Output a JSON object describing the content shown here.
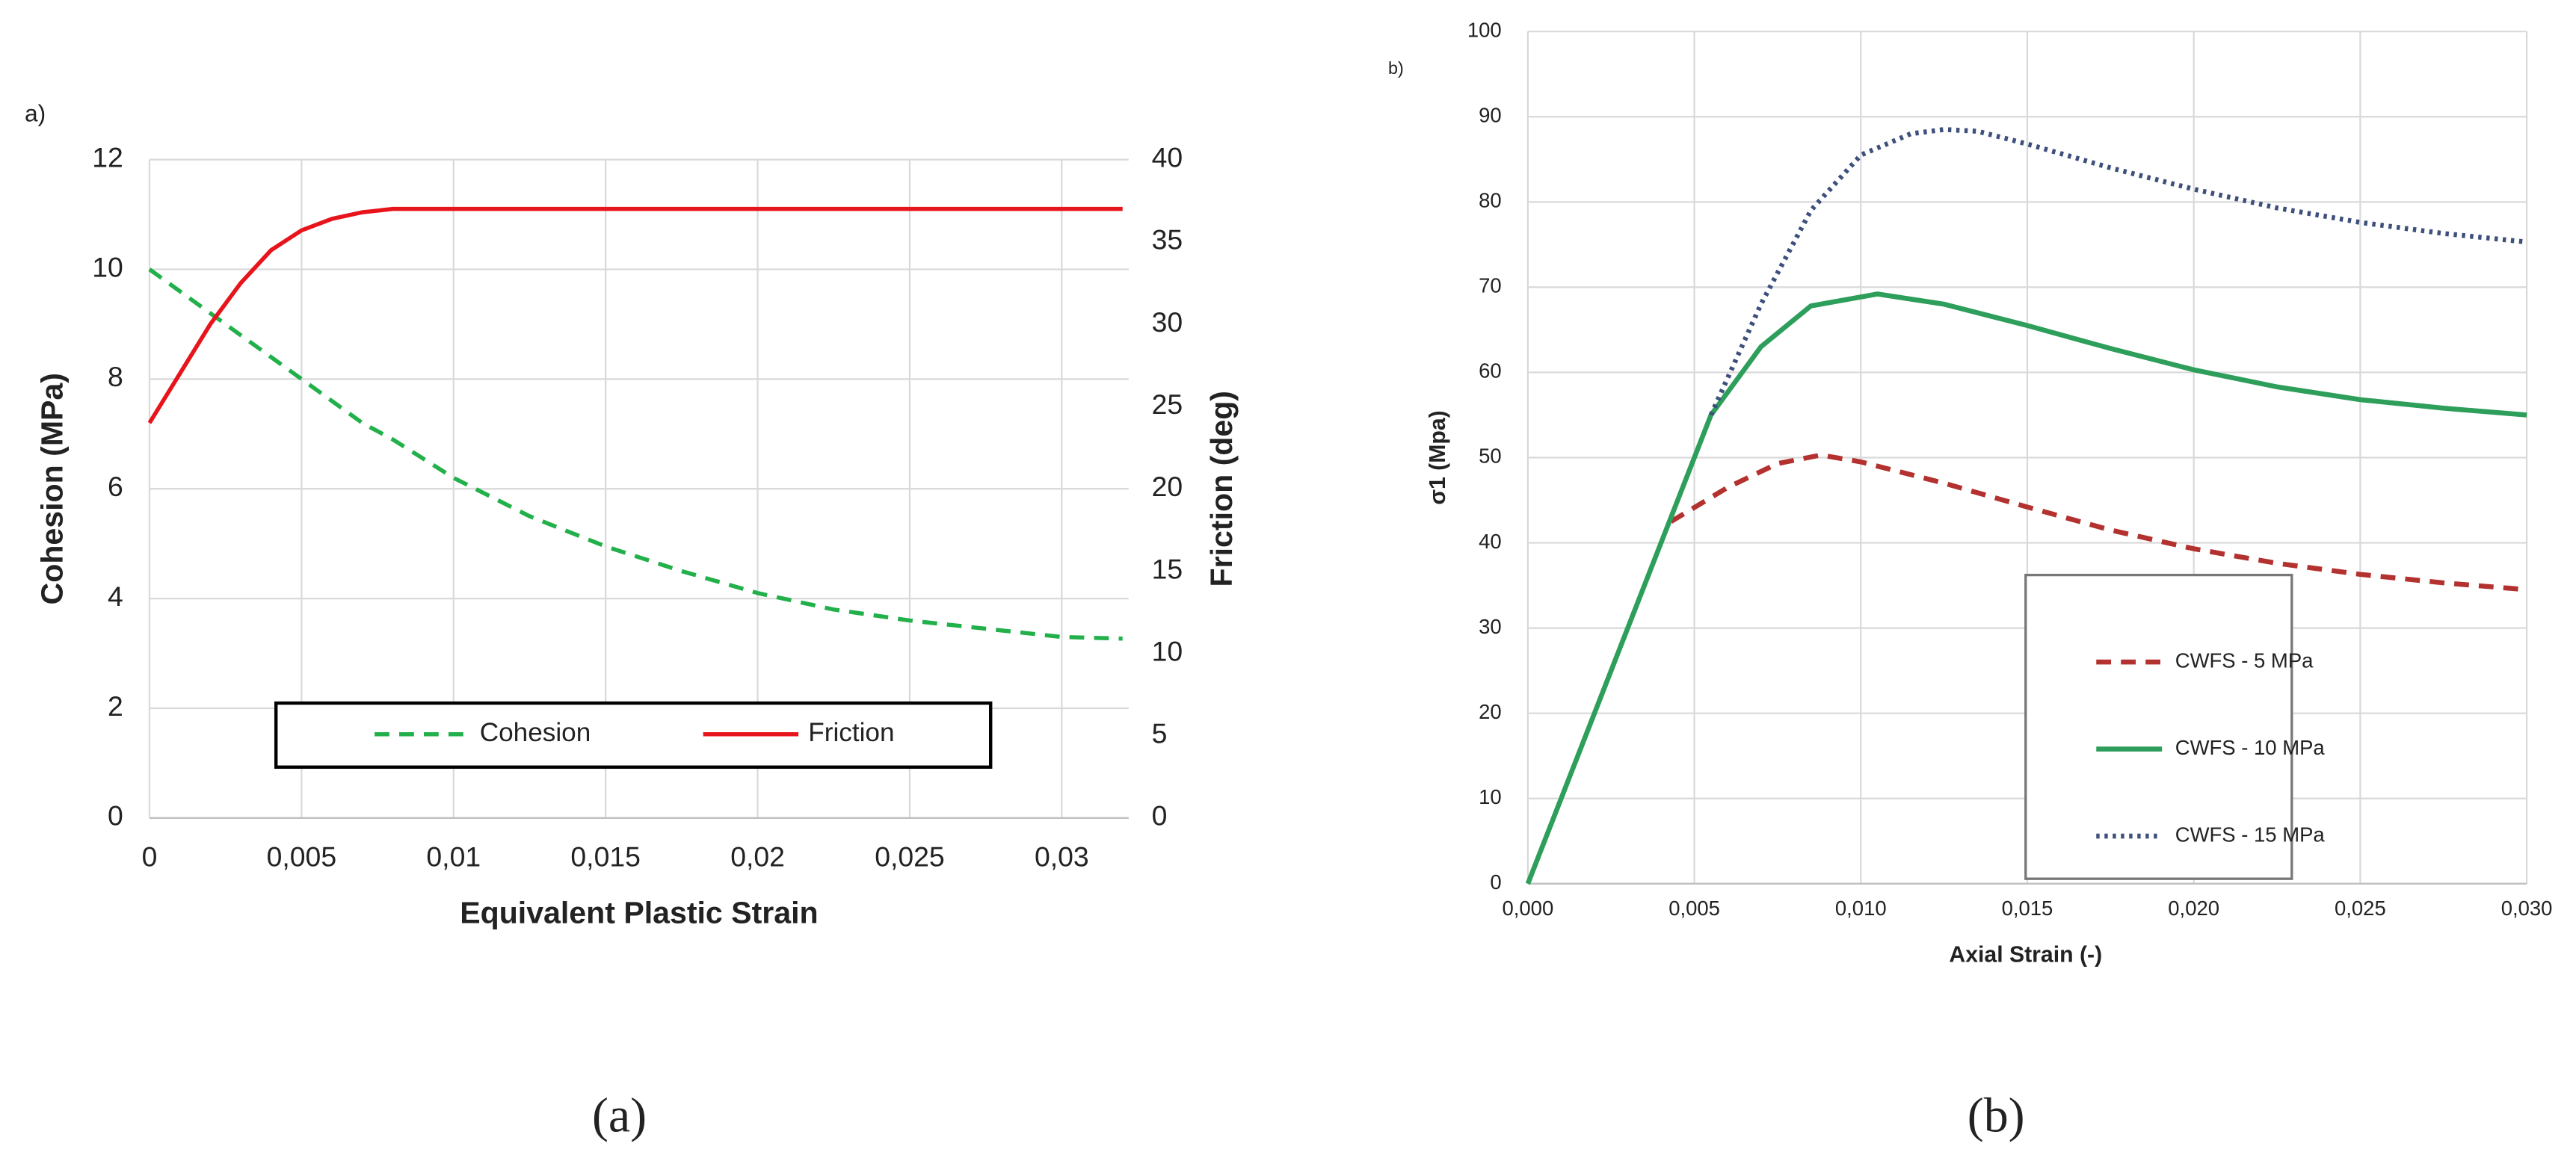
{
  "chart_data": [
    {
      "type": "line",
      "panel_label": "a)",
      "caption": "(a)",
      "xlabel": "Equivalent Plastic  Strain",
      "ylabel": "Cohesion (MPa)",
      "y2label": "Friction (deg)",
      "xlim": [
        0,
        0.0322
      ],
      "ylim": [
        0,
        12
      ],
      "y2lim": [
        0,
        40
      ],
      "xticks": [
        0,
        {
          "value": 0.005,
          "label": "0,005"
        },
        {
          "value": 0.01,
          "label": "0,01"
        },
        {
          "value": 0.015,
          "label": "0,015"
        },
        {
          "value": 0.02,
          "label": "0,02"
        },
        {
          "value": 0.025,
          "label": "0,025"
        },
        {
          "value": 0.03,
          "label": "0,03"
        }
      ],
      "yticks": [
        0,
        2,
        4,
        6,
        8,
        10,
        12
      ],
      "y2ticks": [
        0,
        5,
        10,
        15,
        20,
        25,
        30,
        35,
        40
      ],
      "grid": true,
      "legend": "bottom",
      "x": [
        0,
        0.001,
        0.002,
        0.003,
        0.004,
        0.005,
        0.006,
        0.007,
        0.008,
        0.01,
        0.0125,
        0.015,
        0.0175,
        0.02,
        0.0225,
        0.025,
        0.0275,
        0.03,
        0.032
      ],
      "series": [
        {
          "name": "Cohesion",
          "color": "#22b04b",
          "dash": "dashed",
          "axis": "y",
          "values": [
            10,
            9.6,
            9.2,
            8.8,
            8.4,
            8.0,
            7.6,
            7.2,
            6.9,
            6.2,
            5.5,
            4.95,
            4.5,
            4.1,
            3.8,
            3.6,
            3.45,
            3.3,
            3.27
          ]
        },
        {
          "name": "Friction",
          "color": "#e8141b",
          "dash": "solid",
          "axis": "y2",
          "values": [
            24,
            27,
            30,
            32.5,
            34.5,
            35.7,
            36.4,
            36.8,
            37,
            37,
            37,
            37,
            37,
            37,
            37,
            37,
            37,
            37,
            37
          ]
        }
      ]
    },
    {
      "type": "line",
      "panel_label": "b)",
      "caption": "(b)",
      "xlabel": "Axial Strain (-)",
      "ylabel": "σ1 (Mpa)",
      "xlim": [
        0,
        0.03
      ],
      "ylim": [
        0,
        100
      ],
      "xticks": [
        {
          "value": 0,
          "label": "0,000"
        },
        {
          "value": 0.005,
          "label": "0,005"
        },
        {
          "value": 0.01,
          "label": "0,010"
        },
        {
          "value": 0.015,
          "label": "0,015"
        },
        {
          "value": 0.02,
          "label": "0,020"
        },
        {
          "value": 0.025,
          "label": "0,025"
        },
        {
          "value": 0.03,
          "label": "0,030"
        }
      ],
      "yticks": [
        0,
        10,
        20,
        30,
        40,
        50,
        60,
        70,
        80,
        90,
        100
      ],
      "grid": true,
      "legend": "lower right",
      "series": [
        {
          "name": "CWFS - 5 MPa",
          "color": "#b3312e",
          "dash": "dashed",
          "x": [
            0.0043,
            0.006,
            0.0075,
            0.0088,
            0.01,
            0.0125,
            0.015,
            0.0175,
            0.02,
            0.0225,
            0.025,
            0.0275,
            0.03
          ],
          "values": [
            42.5,
            46.5,
            49.3,
            50.3,
            49.5,
            47,
            44.2,
            41.5,
            39.3,
            37.6,
            36.3,
            35.3,
            34.5
          ]
        },
        {
          "name": "CWFS - 10 MPa",
          "color": "#2e9e5b",
          "dash": "solid",
          "x": [
            0,
            0.0055,
            0.007,
            0.0085,
            0.0105,
            0.0125,
            0.015,
            0.0175,
            0.02,
            0.0225,
            0.025,
            0.0275,
            0.03
          ],
          "values": [
            0,
            55,
            63,
            67.8,
            69.2,
            68,
            65.5,
            62.8,
            60.3,
            58.3,
            56.8,
            55.8,
            55
          ]
        },
        {
          "name": "CWFS - 15 MPa",
          "color": "#3d4f7a",
          "dash": "dotted",
          "x": [
            0.0055,
            0.007,
            0.0085,
            0.01,
            0.0115,
            0.0125,
            0.0135,
            0.015,
            0.0175,
            0.02,
            0.0225,
            0.025,
            0.0275,
            0.03
          ],
          "values": [
            55,
            68,
            79,
            85.5,
            88,
            88.5,
            88.3,
            86.8,
            84,
            81.5,
            79.3,
            77.6,
            76.3,
            75.3
          ]
        }
      ]
    }
  ]
}
